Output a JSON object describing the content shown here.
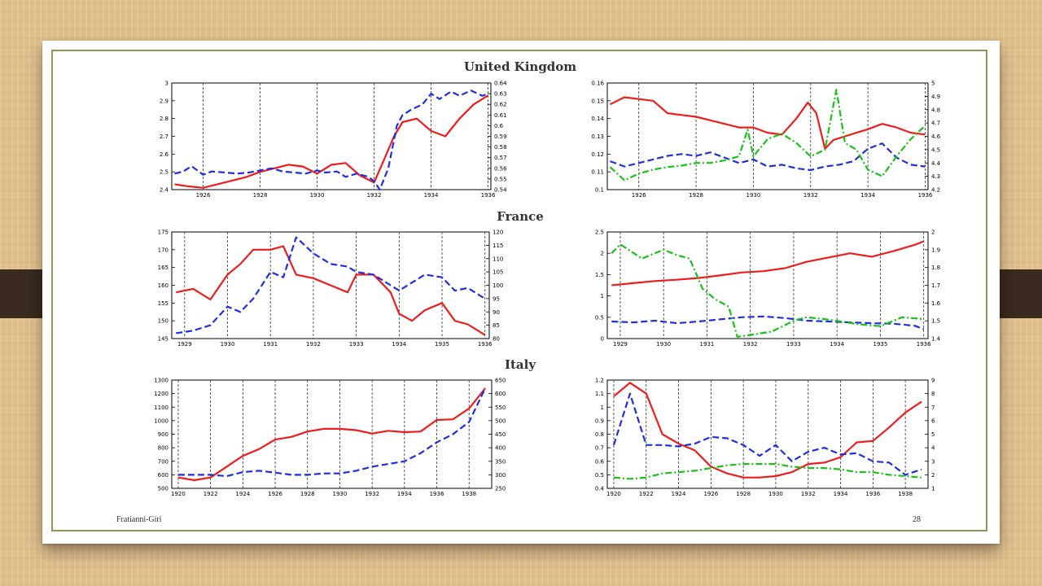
{
  "footer": {
    "author": "Fratianni-Giri",
    "page": "28"
  },
  "sections": [
    "United Kingdom",
    "France",
    "Italy"
  ],
  "colors": {
    "red": "#ee1c1c",
    "blue": "#1f2fe0",
    "green": "#19c219",
    "frame": "#8a9a55"
  },
  "chart_data": [
    {
      "id": "uk-left",
      "type": "line",
      "section": "United Kingdom",
      "x_ticks": [
        "1926",
        "1928",
        "1930",
        "1932",
        "1934",
        "1936"
      ],
      "xlim": [
        1924.9,
        1936.1
      ],
      "ylim_left": [
        2.4,
        3.0
      ],
      "y_ticks_left": [
        "2.4",
        "2.5",
        "2.6",
        "2.7",
        "2.8",
        "2.9",
        "3"
      ],
      "ylim_right": [
        0.54,
        0.64
      ],
      "y_ticks_right": [
        "0.54",
        "0.55",
        "0.56",
        "0.57",
        "0.58",
        "0.59",
        "0.6",
        "0.61",
        "0.62",
        "0.63",
        "0.64"
      ],
      "series": [
        {
          "color": "red",
          "style": "solid",
          "axis": "left",
          "x": [
            1925,
            1925.4,
            1926,
            1926.5,
            1927,
            1927.5,
            1928,
            1928.5,
            1929,
            1929.5,
            1930,
            1930.5,
            1931,
            1931.5,
            1932,
            1932.3,
            1932.7,
            1933,
            1933.5,
            1934,
            1934.5,
            1935,
            1935.5,
            1936
          ],
          "y": [
            2.43,
            2.42,
            2.41,
            2.43,
            2.45,
            2.47,
            2.5,
            2.52,
            2.54,
            2.53,
            2.49,
            2.54,
            2.55,
            2.48,
            2.44,
            2.55,
            2.7,
            2.78,
            2.8,
            2.73,
            2.7,
            2.8,
            2.88,
            2.93
          ]
        },
        {
          "color": "blue",
          "style": "dashed",
          "axis": "right",
          "x": [
            1925,
            1925.3,
            1925.6,
            1926,
            1926.3,
            1926.8,
            1927.2,
            1927.6,
            1928,
            1928.4,
            1928.8,
            1929.2,
            1929.6,
            1930,
            1930.3,
            1930.7,
            1931,
            1931.4,
            1931.8,
            1932,
            1932.2,
            1932.5,
            1932.8,
            1933,
            1933.3,
            1933.7,
            1934,
            1934.3,
            1934.7,
            1935,
            1935.4,
            1935.8,
            1936
          ],
          "y": [
            0.555,
            0.557,
            0.562,
            0.554,
            0.557,
            0.556,
            0.555,
            0.556,
            0.558,
            0.56,
            0.557,
            0.556,
            0.555,
            0.558,
            0.556,
            0.557,
            0.552,
            0.555,
            0.552,
            0.548,
            0.54,
            0.56,
            0.6,
            0.61,
            0.615,
            0.62,
            0.63,
            0.625,
            0.632,
            0.628,
            0.633,
            0.628,
            0.63
          ]
        }
      ]
    },
    {
      "id": "uk-right",
      "type": "line",
      "section": "United Kingdom",
      "x_ticks": [
        "1926",
        "1928",
        "1930",
        "1932",
        "1934",
        "1936"
      ],
      "xlim": [
        1924.9,
        1936.1
      ],
      "ylim_left": [
        0.1,
        0.16
      ],
      "y_ticks_left": [
        "0.1",
        "0.11",
        "0.12",
        "0.13",
        "0.14",
        "0.15",
        "0.16"
      ],
      "ylim_right": [
        4.2,
        5.0
      ],
      "y_ticks_right": [
        "4.2",
        "4.3",
        "4.4",
        "4.5",
        "4.6",
        "4.7",
        "4.8",
        "4.9",
        "5"
      ],
      "series": [
        {
          "color": "red",
          "style": "solid",
          "axis": "left",
          "x": [
            1925,
            1925.5,
            1926,
            1926.5,
            1927,
            1927.5,
            1928,
            1928.5,
            1929,
            1929.5,
            1930,
            1930.5,
            1931,
            1931.5,
            1931.9,
            1932.2,
            1932.5,
            1932.8,
            1933.2,
            1933.6,
            1934,
            1934.5,
            1935,
            1935.5,
            1936
          ],
          "y": [
            0.148,
            0.152,
            0.151,
            0.15,
            0.143,
            0.142,
            0.141,
            0.139,
            0.137,
            0.135,
            0.135,
            0.132,
            0.131,
            0.14,
            0.149,
            0.143,
            0.123,
            0.128,
            0.13,
            0.132,
            0.134,
            0.137,
            0.135,
            0.132,
            0.131
          ]
        },
        {
          "color": "blue",
          "style": "dashed",
          "axis": "left",
          "x": [
            1925,
            1925.5,
            1926,
            1926.5,
            1927,
            1927.5,
            1928,
            1928.5,
            1929,
            1929.5,
            1930,
            1930.5,
            1931,
            1931.5,
            1932,
            1932.5,
            1933,
            1933.5,
            1934,
            1934.5,
            1935,
            1935.5,
            1936
          ],
          "y": [
            0.116,
            0.113,
            0.115,
            0.117,
            0.119,
            0.12,
            0.119,
            0.121,
            0.118,
            0.115,
            0.117,
            0.113,
            0.114,
            0.112,
            0.111,
            0.113,
            0.114,
            0.116,
            0.123,
            0.126,
            0.118,
            0.114,
            0.113
          ]
        },
        {
          "color": "green",
          "style": "dashdot",
          "axis": "right",
          "x": [
            1925,
            1925.5,
            1926,
            1926.5,
            1927,
            1927.5,
            1928,
            1928.5,
            1929,
            1929.5,
            1929.8,
            1930,
            1930.5,
            1931,
            1931.5,
            1932,
            1932.5,
            1932.9,
            1933.2,
            1933.6,
            1934,
            1934.5,
            1935,
            1935.5,
            1936
          ],
          "y": [
            4.37,
            4.27,
            4.32,
            4.35,
            4.37,
            4.38,
            4.4,
            4.4,
            4.42,
            4.45,
            4.65,
            4.45,
            4.58,
            4.62,
            4.55,
            4.45,
            4.5,
            4.95,
            4.55,
            4.5,
            4.35,
            4.3,
            4.45,
            4.58,
            4.68
          ]
        }
      ]
    },
    {
      "id": "fr-left",
      "type": "line",
      "section": "France",
      "x_ticks": [
        "1929",
        "1930",
        "1931",
        "1932",
        "1933",
        "1934",
        "1935",
        "1936"
      ],
      "xlim": [
        1928.7,
        1936.1
      ],
      "ylim_left": [
        145,
        175
      ],
      "y_ticks_left": [
        "145",
        "150",
        "155",
        "160",
        "165",
        "170",
        "175"
      ],
      "ylim_right": [
        80,
        120
      ],
      "y_ticks_right": [
        "80",
        "85",
        "90",
        "95",
        "100",
        "105",
        "110",
        "115",
        "120"
      ],
      "series": [
        {
          "color": "red",
          "style": "solid",
          "axis": "left",
          "x": [
            1928.8,
            1929.2,
            1929.6,
            1930,
            1930.3,
            1930.6,
            1931,
            1931.3,
            1931.6,
            1932,
            1932.4,
            1932.8,
            1933,
            1933.4,
            1933.8,
            1934,
            1934.3,
            1934.6,
            1935,
            1935.3,
            1935.6,
            1936
          ],
          "y": [
            158,
            159,
            156,
            163,
            166,
            170,
            170,
            171,
            163,
            162,
            160,
            158,
            163,
            163,
            158,
            152,
            150,
            153,
            155,
            150,
            149,
            146
          ]
        },
        {
          "color": "blue",
          "style": "dashed",
          "axis": "right",
          "x": [
            1928.8,
            1929.2,
            1929.6,
            1930,
            1930.3,
            1930.6,
            1931,
            1931.3,
            1931.6,
            1932,
            1932.4,
            1932.8,
            1933,
            1933.4,
            1933.8,
            1934,
            1934.3,
            1934.6,
            1935,
            1935.3,
            1935.6,
            1936
          ],
          "y": [
            82,
            83,
            85,
            92,
            90,
            95,
            105,
            103,
            118,
            112,
            108,
            107,
            105,
            104,
            100,
            98,
            101,
            104,
            103,
            98,
            99,
            95
          ]
        }
      ]
    },
    {
      "id": "fr-right",
      "type": "line",
      "section": "France",
      "x_ticks": [
        "1929",
        "1930",
        "1931",
        "1932",
        "1933",
        "1934",
        "1935",
        "1936"
      ],
      "xlim": [
        1928.7,
        1936.1
      ],
      "ylim_left": [
        0,
        2.5
      ],
      "y_ticks_left": [
        "0",
        "0.5",
        "1",
        "1.5",
        "2",
        "2.5"
      ],
      "ylim_right": [
        1.4,
        2.0
      ],
      "y_ticks_right": [
        "1.4",
        "1.5",
        "1.6",
        "1.7",
        "1.8",
        "1.9",
        "2"
      ],
      "series": [
        {
          "color": "red",
          "style": "solid",
          "axis": "left",
          "x": [
            1928.8,
            1929.3,
            1929.8,
            1930.3,
            1930.8,
            1931.3,
            1931.8,
            1932.3,
            1932.8,
            1933.3,
            1933.8,
            1934.3,
            1934.8,
            1935.3,
            1935.8,
            1936
          ],
          "y": [
            1.25,
            1.3,
            1.35,
            1.38,
            1.42,
            1.48,
            1.55,
            1.58,
            1.65,
            1.8,
            1.9,
            2.0,
            1.92,
            2.05,
            2.2,
            2.28
          ]
        },
        {
          "color": "blue",
          "style": "dashed",
          "axis": "left",
          "x": [
            1928.8,
            1929.3,
            1929.8,
            1930.3,
            1930.8,
            1931.3,
            1931.8,
            1932.3,
            1932.8,
            1933.3,
            1933.8,
            1934.3,
            1934.8,
            1935.3,
            1935.8,
            1936
          ],
          "y": [
            0.4,
            0.38,
            0.42,
            0.36,
            0.4,
            0.45,
            0.5,
            0.52,
            0.48,
            0.42,
            0.4,
            0.38,
            0.36,
            0.35,
            0.3,
            0.22
          ]
        },
        {
          "color": "green",
          "style": "dashdot",
          "axis": "right",
          "x": [
            1928.8,
            1929,
            1929.5,
            1930,
            1930.3,
            1930.6,
            1930.9,
            1931.2,
            1931.5,
            1931.7,
            1932,
            1932.5,
            1933,
            1933.3,
            1933.7,
            1934,
            1934.5,
            1935,
            1935.5,
            1936
          ],
          "y": [
            1.88,
            1.93,
            1.85,
            1.9,
            1.87,
            1.85,
            1.68,
            1.62,
            1.58,
            1.41,
            1.42,
            1.44,
            1.5,
            1.52,
            1.51,
            1.5,
            1.48,
            1.47,
            1.52,
            1.51
          ]
        }
      ]
    },
    {
      "id": "it-left",
      "type": "line",
      "section": "Italy",
      "x_ticks": [
        "1920",
        "1922",
        "1924",
        "1926",
        "1928",
        "1930",
        "1932",
        "1934",
        "1936",
        "1938"
      ],
      "xlim": [
        1919.6,
        1939.4
      ],
      "ylim_left": [
        500,
        1300
      ],
      "y_ticks_left": [
        "500",
        "600",
        "700",
        "800",
        "900",
        "1000",
        "1100",
        "1200",
        "1300"
      ],
      "ylim_right": [
        250,
        650
      ],
      "y_ticks_right": [
        "250",
        "300",
        "350",
        "400",
        "450",
        "500",
        "550",
        "600",
        "650"
      ],
      "series": [
        {
          "color": "red",
          "style": "solid",
          "axis": "left",
          "x": [
            1920,
            1921,
            1922,
            1923,
            1924,
            1925,
            1926,
            1927,
            1928,
            1929,
            1930,
            1931,
            1932,
            1933,
            1934,
            1935,
            1936,
            1937,
            1938,
            1939
          ],
          "y": [
            580,
            560,
            580,
            660,
            740,
            790,
            860,
            880,
            920,
            940,
            940,
            930,
            905,
            925,
            915,
            920,
            1005,
            1010,
            1090,
            1240
          ]
        },
        {
          "color": "blue",
          "style": "dashed",
          "axis": "right",
          "x": [
            1920,
            1921,
            1922,
            1923,
            1924,
            1925,
            1926,
            1927,
            1928,
            1929,
            1930,
            1931,
            1932,
            1933,
            1934,
            1935,
            1936,
            1937,
            1938,
            1939
          ],
          "y": [
            300,
            300,
            300,
            295,
            310,
            315,
            308,
            300,
            300,
            305,
            305,
            315,
            330,
            340,
            350,
            380,
            420,
            450,
            495,
            620
          ]
        }
      ]
    },
    {
      "id": "it-right",
      "type": "line",
      "section": "Italy",
      "x_ticks": [
        "1920",
        "1922",
        "1924",
        "1926",
        "1928",
        "1930",
        "1932",
        "1934",
        "1936",
        "1938"
      ],
      "xlim": [
        1919.6,
        1939.4
      ],
      "ylim_left": [
        0.4,
        1.2
      ],
      "y_ticks_left": [
        "0.4",
        "0.5",
        "0.6",
        "0.7",
        "0.8",
        "0.9",
        "1",
        "1.1",
        "1.2"
      ],
      "ylim_right": [
        1,
        9
      ],
      "y_ticks_right": [
        "1",
        "2",
        "3",
        "4",
        "5",
        "6",
        "7",
        "8",
        "9"
      ],
      "series": [
        {
          "color": "red",
          "style": "solid",
          "axis": "left",
          "x": [
            1920,
            1921,
            1922,
            1923,
            1924,
            1925,
            1926,
            1927,
            1928,
            1929,
            1930,
            1931,
            1932,
            1933,
            1934,
            1935,
            1936,
            1937,
            1938,
            1939
          ],
          "y": [
            1.08,
            1.18,
            1.1,
            0.8,
            0.73,
            0.68,
            0.56,
            0.51,
            0.48,
            0.48,
            0.49,
            0.52,
            0.58,
            0.59,
            0.63,
            0.74,
            0.75,
            0.85,
            0.96,
            1.04
          ]
        },
        {
          "color": "blue",
          "style": "dashed",
          "axis": "right",
          "x": [
            1920,
            1921,
            1922,
            1923,
            1924,
            1925,
            1926,
            1927,
            1928,
            1929,
            1930,
            1931,
            1932,
            1933,
            1934,
            1935,
            1936,
            1937,
            1938,
            1939
          ],
          "y": [
            4.2,
            8.0,
            4.2,
            4.2,
            4.1,
            4.3,
            4.8,
            4.7,
            4.2,
            3.4,
            4.2,
            3.0,
            3.7,
            4.0,
            3.5,
            3.6,
            3.0,
            2.9,
            2.0,
            2.4
          ]
        },
        {
          "color": "green",
          "style": "dashdot",
          "axis": "right",
          "x": [
            1920,
            1921,
            1922,
            1923,
            1924,
            1925,
            1926,
            1927,
            1928,
            1929,
            1930,
            1931,
            1932,
            1933,
            1934,
            1935,
            1936,
            1937,
            1938,
            1939
          ],
          "y": [
            1.8,
            1.7,
            1.8,
            2.1,
            2.2,
            2.3,
            2.5,
            2.7,
            2.8,
            2.8,
            2.8,
            2.6,
            2.5,
            2.5,
            2.4,
            2.2,
            2.2,
            2.0,
            1.9,
            1.8
          ]
        }
      ]
    }
  ]
}
